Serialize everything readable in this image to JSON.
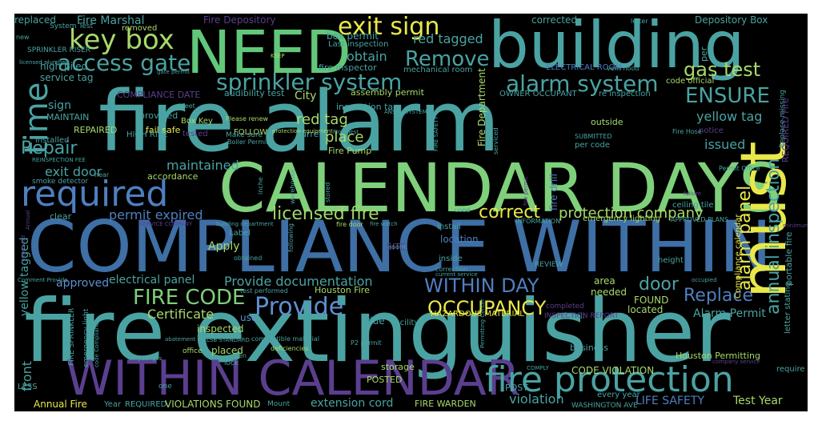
{
  "words": [
    {
      "text": "fire alarm",
      "color": "#4aa3a2"
    },
    {
      "text": "fire extinguisher",
      "color": "#4aa3a2"
    },
    {
      "text": "COMPLIANCE WITHIN",
      "color": "#3e6fa5"
    },
    {
      "text": "CALENDAR DAYS",
      "color": "#7fd07a"
    },
    {
      "text": "building",
      "color": "#4aa3a2"
    },
    {
      "text": "NEED",
      "color": "#62c77a"
    },
    {
      "text": "must",
      "color": "#e8e84a"
    },
    {
      "text": "WITHIN CALENDAR",
      "color": "#5b3f8f"
    },
    {
      "text": "fire protection",
      "color": "#4aa3a2"
    },
    {
      "text": "required",
      "color": "#4f7fbf"
    },
    {
      "text": "time",
      "color": "#4aa3a2"
    },
    {
      "text": "key box",
      "color": "#a7d96a"
    },
    {
      "text": "exit sign",
      "color": "#e8e84a"
    },
    {
      "text": "sprinkler system",
      "color": "#4aa3a2"
    },
    {
      "text": "alarm system",
      "color": "#4aa3a2"
    },
    {
      "text": "access gate",
      "color": "#4aa3a2"
    },
    {
      "text": "Remove",
      "color": "#4aa3a2"
    },
    {
      "text": "gas test",
      "color": "#a7d96a"
    },
    {
      "text": "ENSURE",
      "color": "#4aa3a2"
    },
    {
      "text": "Provide",
      "color": "#5e8fcf"
    },
    {
      "text": "FIRE CODE",
      "color": "#7fd07a"
    },
    {
      "text": "WITHIN DAY",
      "color": "#4f7fbf"
    },
    {
      "text": "OCCUPANCY",
      "color": "#e8e84a"
    },
    {
      "text": "licensed fire",
      "color": "#9fd86a"
    },
    {
      "text": "correct",
      "color": "#e8e84a"
    },
    {
      "text": "protection company",
      "color": "#a7d96a"
    },
    {
      "text": "Replace",
      "color": "#4f7fbf"
    },
    {
      "text": "annual inspection",
      "color": "#4aa3a2"
    },
    {
      "text": "alarm panel",
      "color": "#e8e84a"
    },
    {
      "text": "door",
      "color": "#4aa3a2"
    },
    {
      "text": "Repair",
      "color": "#4aa3a2"
    },
    {
      "text": "Provide documentation",
      "color": "#4aa3a2"
    },
    {
      "text": "Certificate",
      "color": "#a7d96a"
    },
    {
      "text": "maintained",
      "color": "#4aa3a2"
    },
    {
      "text": "permit expired",
      "color": "#4f7fbf"
    },
    {
      "text": "red tag",
      "color": "#a7d96a"
    },
    {
      "text": "red tagged",
      "color": "#4aa3a2"
    },
    {
      "text": "obtain",
      "color": "#4aa3a2"
    },
    {
      "text": "place",
      "color": "#a7d96a"
    },
    {
      "text": "exit door",
      "color": "#4aa3a2"
    },
    {
      "text": "yellow tag",
      "color": "#4aa3a2"
    },
    {
      "text": "issued",
      "color": "#4aa3a2"
    },
    {
      "text": "Alarm Permit",
      "color": "#4aa3a2"
    },
    {
      "text": "LIFE SAFETY",
      "color": "#4f7fbf"
    },
    {
      "text": "Test Year",
      "color": "#a7d96a"
    },
    {
      "text": "violation",
      "color": "#4aa3a2"
    },
    {
      "text": "extension cord",
      "color": "#4aa3a2"
    },
    {
      "text": "Annual Fire",
      "color": "#e8e84a"
    },
    {
      "text": "VIOLATIONS FOUND",
      "color": "#a7d96a"
    },
    {
      "text": "FIRE WARDEN",
      "color": "#a7d96a"
    },
    {
      "text": "CODE VIOLATION",
      "color": "#a7d96a"
    },
    {
      "text": "Houston Permitting",
      "color": "#a7d96a"
    },
    {
      "text": "front",
      "color": "#4aa3a2"
    },
    {
      "text": "yellow tagged",
      "color": "#4aa3a2"
    },
    {
      "text": "electrical panel",
      "color": "#4aa3a2"
    },
    {
      "text": "approved",
      "color": "#5e8fcf"
    },
    {
      "text": "Apply",
      "color": "#a7d96a"
    },
    {
      "text": "inspected",
      "color": "#a7d96a"
    },
    {
      "text": "placed",
      "color": "#a7d96a"
    },
    {
      "text": "located",
      "color": "#a7d96a"
    },
    {
      "text": "FOUND",
      "color": "#a7d96a"
    },
    {
      "text": "area",
      "color": "#a7d96a"
    },
    {
      "text": "needed",
      "color": "#a7d96a"
    },
    {
      "text": "due",
      "color": "#4aa3a2"
    },
    {
      "text": "use",
      "color": "#5e8fcf"
    },
    {
      "text": "Fire Marshal",
      "color": "#4aa3a2"
    },
    {
      "text": "Fire Depository",
      "color": "#5b3f8f"
    },
    {
      "text": "replaced",
      "color": "#4aa3a2"
    },
    {
      "text": "corrected",
      "color": "#4aa3a2"
    },
    {
      "text": "Depository Box",
      "color": "#4aa3a2"
    },
    {
      "text": "box permit",
      "color": "#4aa3a2"
    },
    {
      "text": "high piled",
      "color": "#4aa3a2"
    },
    {
      "text": "service tag",
      "color": "#4aa3a2"
    },
    {
      "text": "sign",
      "color": "#4aa3a2"
    },
    {
      "text": "REPAIRED",
      "color": "#a7d96a"
    },
    {
      "text": "provided",
      "color": "#4aa3a2"
    },
    {
      "text": "City",
      "color": "#a7d96a"
    },
    {
      "text": "Fire Department",
      "color": "#a7d96a"
    },
    {
      "text": "fire drill",
      "color": "#4f7fbf"
    },
    {
      "text": "clear",
      "color": "#4aa3a2"
    },
    {
      "text": "accordance",
      "color": "#a7d96a"
    },
    {
      "text": "install",
      "color": "#4aa3a2"
    },
    {
      "text": "inside",
      "color": "#4aa3a2"
    },
    {
      "text": "location",
      "color": "#4f7fbf"
    },
    {
      "text": "SITE",
      "color": "#5b3f8f"
    },
    {
      "text": "Label",
      "color": "#4aa3a2"
    },
    {
      "text": "outside",
      "color": "#a7d96a"
    },
    {
      "text": "current",
      "color": "#4aa3a2"
    },
    {
      "text": "Fire Pump",
      "color": "#a7d96a"
    },
    {
      "text": "Houston Fire",
      "color": "#a7d96a"
    },
    {
      "text": "HAZARDOUS MATERIAL",
      "color": "#e8e84a"
    },
    {
      "text": "emergency lighting",
      "color": "#a7d96a"
    },
    {
      "text": "fire inspector",
      "color": "#4aa3a2"
    },
    {
      "text": "MAINTAIN",
      "color": "#4aa3a2"
    },
    {
      "text": "COMPLIANCE DATE",
      "color": "#5b3f8f"
    },
    {
      "text": "inspection tag",
      "color": "#4aa3a2"
    },
    {
      "text": "assembly permit",
      "color": "#a7d96a"
    },
    {
      "text": "audibility test",
      "color": "#4aa3a2"
    },
    {
      "text": "Last inspection",
      "color": "#4aa3a2"
    },
    {
      "text": "mechanical room",
      "color": "#4aa3a2"
    },
    {
      "text": "ELECTRICAL ROOM",
      "color": "#4f7fbf"
    },
    {
      "text": "code official",
      "color": "#a7d96a"
    },
    {
      "text": "re inspection",
      "color": "#4aa3a2"
    },
    {
      "text": "OWNER OCCUPANT",
      "color": "#4aa3a2"
    },
    {
      "text": "removed",
      "color": "#a7d96a"
    },
    {
      "text": "SPRINKLER RISER",
      "color": "#4aa3a2"
    },
    {
      "text": "System Test",
      "color": "#4aa3a2"
    },
    {
      "text": "fail safe",
      "color": "#e8e84a"
    },
    {
      "text": "Box Key",
      "color": "#a7d96a"
    },
    {
      "text": "HIGH RISE",
      "color": "#4aa3a2"
    },
    {
      "text": "tested",
      "color": "#5b3f8f"
    },
    {
      "text": "installed",
      "color": "#4aa3a2"
    },
    {
      "text": "FOLLOW",
      "color": "#a7d96a"
    },
    {
      "text": "smoke detector",
      "color": "#4aa3a2"
    },
    {
      "text": "per code",
      "color": "#4aa3a2"
    },
    {
      "text": "notice",
      "color": "#5b3f8f"
    },
    {
      "text": "storage",
      "color": "#a7d96a"
    },
    {
      "text": "POSTED",
      "color": "#a7d96a"
    },
    {
      "text": "business",
      "color": "#4aa3a2"
    },
    {
      "text": "will",
      "color": "#4aa3a2"
    },
    {
      "text": "POST",
      "color": "#4aa3a2"
    },
    {
      "text": "every year",
      "color": "#4aa3a2"
    },
    {
      "text": "facility",
      "color": "#4aa3a2"
    },
    {
      "text": "height",
      "color": "#4aa3a2"
    },
    {
      "text": "require",
      "color": "#4aa3a2"
    },
    {
      "text": "LESS",
      "color": "#4aa3a2"
    },
    {
      "text": "office",
      "color": "#a7d96a"
    },
    {
      "text": "lock",
      "color": "#4aa3a2"
    },
    {
      "text": "one",
      "color": "#4aa3a2"
    },
    {
      "text": "Year",
      "color": "#4aa3a2"
    },
    {
      "text": "REQUIRED",
      "color": "#4aa3a2"
    },
    {
      "text": "Mount",
      "color": "#4aa3a2"
    },
    {
      "text": "WASHINGTON AVE",
      "color": "#4aa3a2"
    },
    {
      "text": "INSPECTION REPORT",
      "color": "#5b3f8f"
    },
    {
      "text": "completed",
      "color": "#5b3f8f"
    },
    {
      "text": "REVIEW",
      "color": "#4aa3a2"
    },
    {
      "text": "INFORMATION",
      "color": "#4aa3a2"
    },
    {
      "text": "APPROVED PLANS",
      "color": "#4aa3a2"
    },
    {
      "text": "ceiling tile",
      "color": "#4aa3a2"
    },
    {
      "text": "Replace missing",
      "color": "#4aa3a2"
    },
    {
      "text": "REQUIRED Fire",
      "color": "#5b3f8f"
    },
    {
      "text": "portable fire",
      "color": "#4aa3a2"
    },
    {
      "text": "letter stating",
      "color": "#4aa3a2"
    },
    {
      "text": "Compliance calendar",
      "color": "#e8e84a"
    },
    {
      "text": "per",
      "color": "#4aa3a2"
    },
    {
      "text": "letter",
      "color": "#4aa3a2"
    },
    {
      "text": "vent hood",
      "color": "#4aa3a2"
    },
    {
      "text": "Permit Office",
      "color": "#4aa3a2"
    },
    {
      "text": "Fire Hose",
      "color": "#4aa3a2"
    },
    {
      "text": "SUBMITTED",
      "color": "#4aa3a2"
    },
    {
      "text": "serviced",
      "color": "#4aa3a2"
    },
    {
      "text": "Flow Test",
      "color": "#4aa3a2"
    },
    {
      "text": "ANSUL SYSTEM",
      "color": "#4aa3a2"
    },
    {
      "text": "FIRE SAFETY",
      "color": "#4aa3a2"
    },
    {
      "text": "Please renew",
      "color": "#a7d96a"
    },
    {
      "text": "Make sure",
      "color": "#4aa3a2"
    },
    {
      "text": "protection equipment",
      "color": "#a7d96a"
    },
    {
      "text": "Boiler Permit",
      "color": "#4aa3a2"
    },
    {
      "text": "feet",
      "color": "#4aa3a2"
    },
    {
      "text": "KEEP",
      "color": "#a7d96a"
    },
    {
      "text": "gate permit",
      "color": "#4aa3a2"
    },
    {
      "text": "licensed plumber",
      "color": "#4aa3a2"
    },
    {
      "text": "new",
      "color": "#4aa3a2"
    },
    {
      "text": "REINSPECTION FEE",
      "color": "#4aa3a2"
    },
    {
      "text": "near",
      "color": "#4aa3a2"
    },
    {
      "text": "warehouse",
      "color": "#4aa3a2"
    },
    {
      "text": "inche",
      "color": "#4aa3a2"
    },
    {
      "text": "stored",
      "color": "#4aa3a2"
    },
    {
      "text": "used",
      "color": "#4aa3a2"
    },
    {
      "text": "fire door",
      "color": "#a7d96a"
    },
    {
      "text": "fire watch",
      "color": "#4aa3a2"
    },
    {
      "text": "building department",
      "color": "#4aa3a2"
    },
    {
      "text": "SERVICE COMPANY",
      "color": "#5b3f8f"
    },
    {
      "text": "obtained",
      "color": "#4aa3a2"
    },
    {
      "text": "following",
      "color": "#4aa3a2"
    },
    {
      "text": "room",
      "color": "#4aa3a2"
    },
    {
      "text": "correction",
      "color": "#4aa3a2"
    },
    {
      "text": "current service",
      "color": "#4aa3a2"
    },
    {
      "text": "test performed",
      "color": "#4aa3a2"
    },
    {
      "text": "combustible material",
      "color": "#4aa3a2"
    },
    {
      "text": "LSB STANDARD",
      "color": "#4aa3a2"
    },
    {
      "text": "deficiencies",
      "color": "#a7d96a"
    },
    {
      "text": "P2 permit",
      "color": "#4aa3a2"
    },
    {
      "text": "Permitting Center",
      "color": "#4aa3a2"
    },
    {
      "text": "COMPLY",
      "color": "#4aa3a2"
    },
    {
      "text": "company service",
      "color": "#5b3f8f"
    },
    {
      "text": "occupied",
      "color": "#4aa3a2"
    },
    {
      "text": "emergency light",
      "color": "#4aa3a2"
    },
    {
      "text": "FIRE SPRINKLER",
      "color": "#4aa3a2"
    },
    {
      "text": "code Compliance",
      "color": "#4aa3a2"
    },
    {
      "text": "year gas",
      "color": "#4aa3a2"
    },
    {
      "text": "abatement",
      "color": "#4aa3a2"
    },
    {
      "text": "open",
      "color": "#4aa3a2"
    },
    {
      "text": "Comment Provide",
      "color": "#4aa3a2"
    },
    {
      "text": "Annual",
      "color": "#5b3f8f"
    },
    {
      "text": "approved",
      "color": "#5b3f8f"
    },
    {
      "text": "minimum",
      "color": "#5b3f8f"
    },
    {
      "text": "failure",
      "color": "#5b3f8f"
    },
    {
      "text": "fire permit",
      "color": "#5b3f8f"
    }
  ]
}
